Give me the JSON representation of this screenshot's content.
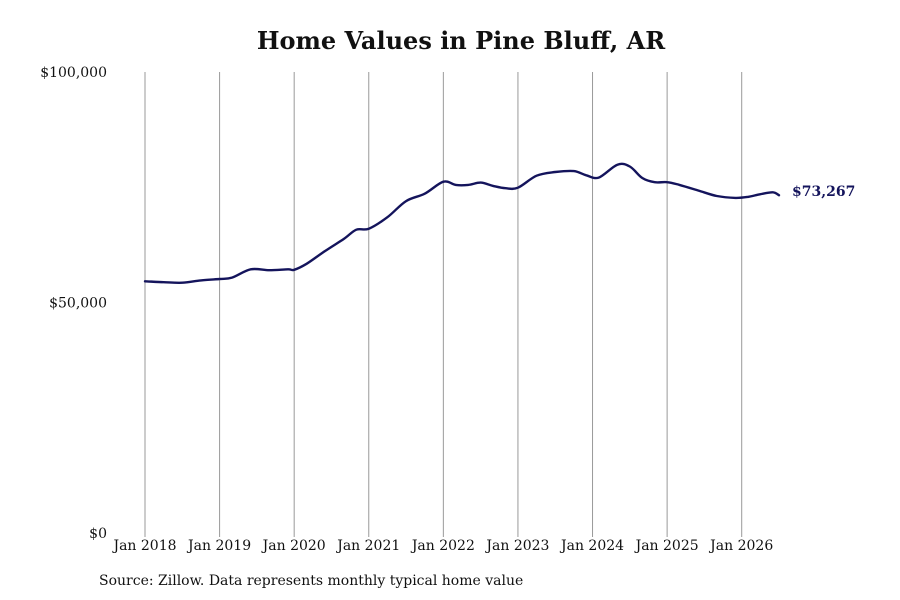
{
  "chart_data": {
    "type": "line",
    "title": "Home Values in Pine Bluff, AR",
    "xlabel": "",
    "ylabel": "",
    "ylim": [
      0,
      100000
    ],
    "xlim": [
      "2018-01",
      "2026-07"
    ],
    "y_ticks": [
      {
        "value": 0,
        "label": "$0"
      },
      {
        "value": 50000,
        "label": "$50,000"
      },
      {
        "value": 100000,
        "label": "$100,000"
      }
    ],
    "x_ticks": [
      {
        "value": "2018-01",
        "label": "Jan 2018"
      },
      {
        "value": "2019-01",
        "label": "Jan 2019"
      },
      {
        "value": "2020-01",
        "label": "Jan 2020"
      },
      {
        "value": "2021-01",
        "label": "Jan 2021"
      },
      {
        "value": "2022-01",
        "label": "Jan 2022"
      },
      {
        "value": "2023-01",
        "label": "Jan 2023"
      },
      {
        "value": "2024-01",
        "label": "Jan 2024"
      },
      {
        "value": "2025-01",
        "label": "Jan 2025"
      },
      {
        "value": "2026-01",
        "label": "Jan 2026"
      }
    ],
    "grid": "vertical",
    "line_color": "#14145c",
    "grid_color": "#9a9a9a",
    "series": [
      {
        "x": [
          "2018-01",
          "2018-04",
          "2018-07",
          "2018-10",
          "2019-01",
          "2019-03",
          "2019-06",
          "2019-09",
          "2019-12",
          "2020-01",
          "2020-03",
          "2020-06",
          "2020-09",
          "2020-11",
          "2021-01",
          "2021-04",
          "2021-07",
          "2021-10",
          "2022-01",
          "2022-03",
          "2022-05",
          "2022-07",
          "2022-09",
          "2022-11",
          "2023-01",
          "2023-04",
          "2023-07",
          "2023-10",
          "2023-12",
          "2024-02",
          "2024-05",
          "2024-07",
          "2024-09",
          "2024-11",
          "2025-01",
          "2025-03",
          "2025-06",
          "2025-09",
          "2025-12",
          "2026-02",
          "2026-04",
          "2026-06",
          "2026-07"
        ],
        "values": [
          54600,
          54400,
          54300,
          54800,
          55100,
          55400,
          57200,
          57000,
          57200,
          57100,
          58400,
          61200,
          63800,
          65800,
          66000,
          68500,
          72000,
          73600,
          76200,
          75500,
          75500,
          76000,
          75300,
          74800,
          74900,
          77500,
          78300,
          78500,
          77600,
          77100,
          79900,
          79500,
          77000,
          76100,
          76100,
          75500,
          74300,
          73100,
          72700,
          72900,
          73500,
          73900,
          73267
        ]
      }
    ],
    "end_label": "$73,267"
  },
  "source": "Source: Zillow. Data represents monthly typical home value"
}
